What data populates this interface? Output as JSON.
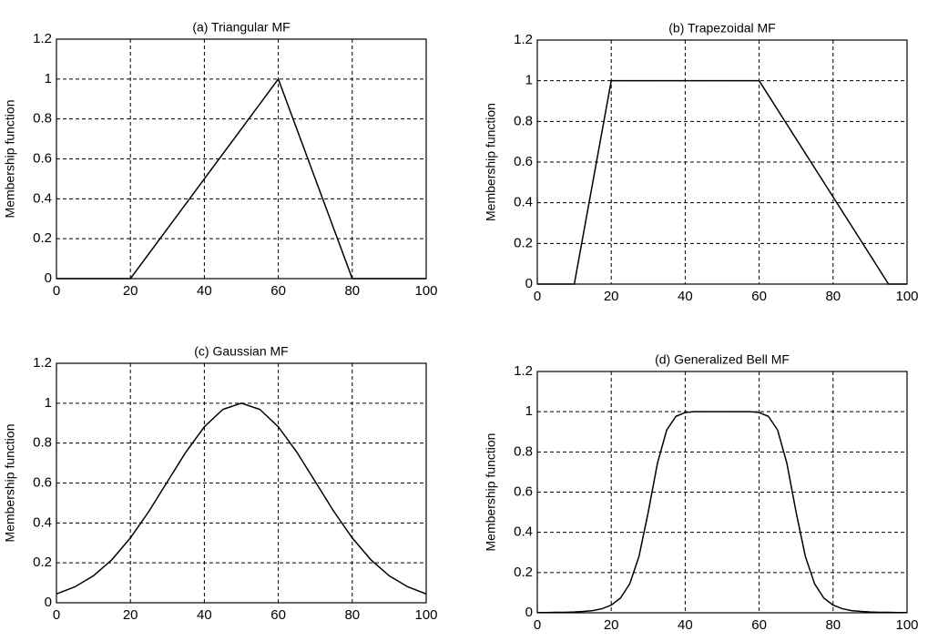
{
  "chart_data": [
    {
      "type": "line",
      "title": "(a) Triangular MF",
      "y_label": "Membership function",
      "color": "#000000",
      "grid": true,
      "x": [
        0,
        20,
        60,
        80,
        100
      ],
      "values": [
        0,
        0,
        1,
        0,
        0
      ],
      "xlim": [
        0,
        100
      ],
      "ylim": [
        0,
        1.2
      ],
      "xticks": [
        0,
        20,
        40,
        60,
        80,
        100
      ],
      "yticks": [
        0,
        0.2,
        0.4,
        0.6,
        0.8,
        1,
        1.2
      ]
    },
    {
      "type": "line",
      "title": "(b) Trapezoidal MF",
      "y_label": "Membership function",
      "color": "#000000",
      "grid": true,
      "x": [
        0,
        10,
        20,
        60,
        95,
        100
      ],
      "values": [
        0,
        0,
        1,
        1,
        0,
        0
      ],
      "xlim": [
        0,
        100
      ],
      "ylim": [
        0,
        1.2
      ],
      "xticks": [
        0,
        20,
        40,
        60,
        80,
        100
      ],
      "yticks": [
        0,
        0.2,
        0.4,
        0.6,
        0.8,
        1,
        1.2
      ]
    },
    {
      "type": "line",
      "title": "(c) Gaussian MF",
      "y_label": "Membership function",
      "color": "#000000",
      "grid": true,
      "x": [
        0,
        5,
        10,
        15,
        20,
        25,
        30,
        35,
        40,
        45,
        50,
        55,
        60,
        65,
        70,
        75,
        80,
        85,
        90,
        95,
        100
      ],
      "values": [
        0.044,
        0.08,
        0.135,
        0.216,
        0.325,
        0.458,
        0.607,
        0.755,
        0.882,
        0.969,
        1,
        0.969,
        0.882,
        0.755,
        0.607,
        0.458,
        0.325,
        0.216,
        0.135,
        0.08,
        0.044
      ],
      "xlim": [
        0,
        100
      ],
      "ylim": [
        0,
        1.2
      ],
      "xticks": [
        0,
        20,
        40,
        60,
        80,
        100
      ],
      "yticks": [
        0,
        0.2,
        0.4,
        0.6,
        0.8,
        1,
        1.2
      ]
    },
    {
      "type": "line",
      "title": "(d) Generalized Bell MF",
      "y_label": "Membership function",
      "color": "#000000",
      "grid": true,
      "x": [
        0,
        2.5,
        5,
        7.5,
        10,
        12.5,
        15,
        17.5,
        20,
        22.5,
        25,
        27.5,
        30,
        32.5,
        35,
        37.5,
        40,
        42.5,
        45,
        47.5,
        50,
        52.5,
        55,
        57.5,
        60,
        62.5,
        65,
        67.5,
        70,
        72.5,
        75,
        77.5,
        80,
        82.5,
        85,
        87.5,
        90,
        92.5,
        95,
        97.5,
        100
      ],
      "values": [
        0.001,
        0.001,
        0.002,
        0.002,
        0.004,
        0.007,
        0.011,
        0.02,
        0.038,
        0.073,
        0.144,
        0.28,
        0.5,
        0.744,
        0.909,
        0.977,
        0.996,
        1,
        1,
        1,
        1,
        1,
        1,
        1,
        0.996,
        0.977,
        0.909,
        0.744,
        0.5,
        0.28,
        0.144,
        0.073,
        0.038,
        0.02,
        0.011,
        0.007,
        0.004,
        0.002,
        0.002,
        0.001,
        0.001
      ],
      "xlim": [
        0,
        100
      ],
      "ylim": [
        0,
        1.2
      ],
      "xticks": [
        0,
        20,
        40,
        60,
        80,
        100
      ],
      "yticks": [
        0,
        0.2,
        0.4,
        0.6,
        0.8,
        1,
        1.2
      ]
    }
  ]
}
